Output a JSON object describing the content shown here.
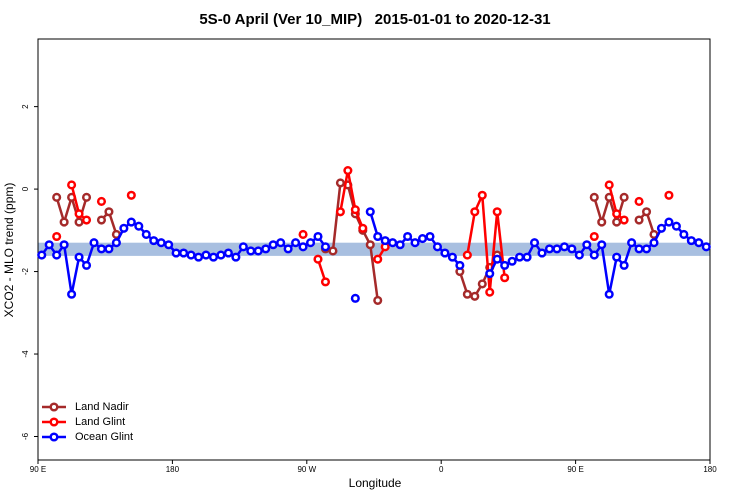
{
  "chart_data": {
    "type": "line",
    "title": "5S-0 April (Ver 10_MIP)   2015-01-01 to 2020-12-31",
    "xlabel": "Longitude",
    "ylabel": "XCO2 - MLO trend (ppm)",
    "xlim": [
      90,
      540
    ],
    "xticks": [
      {
        "value": 90,
        "label": "90 E"
      },
      180,
      {
        "value": 270,
        "label": "90 W"
      },
      {
        "value": 360,
        "label": "0"
      },
      {
        "value": 450,
        "label": "90 E"
      },
      {
        "value": 540,
        "label": "180"
      }
    ],
    "ylim": [
      -6.57,
      3.64
    ],
    "yticks": [
      -6,
      -4,
      -2,
      0,
      2
    ],
    "band": {
      "ylim": [
        -1.62,
        -1.3
      ],
      "color": "#a8bfe0"
    },
    "legend": "bottom-left",
    "x": [
      92.5,
      97.5,
      102.5,
      107.5,
      112.5,
      117.5,
      122.5,
      127.5,
      132.5,
      137.5,
      142.5,
      147.5,
      152.5,
      157.5,
      162.5,
      167.5,
      172.5,
      177.5,
      182.5,
      187.5,
      192.5,
      197.5,
      202.5,
      207.5,
      212.5,
      217.5,
      222.5,
      227.5,
      232.5,
      237.5,
      242.5,
      247.5,
      252.5,
      257.5,
      262.5,
      267.5,
      272.5,
      277.5,
      282.5,
      287.5,
      292.5,
      297.5,
      302.5,
      307.5,
      312.5,
      317.5,
      322.5,
      327.5,
      332.5,
      337.5,
      342.5,
      347.5,
      352.5,
      357.5,
      362.5,
      367.5,
      372.5,
      377.5,
      382.5,
      387.5,
      392.5,
      397.5,
      402.5,
      407.5,
      412.5,
      417.5,
      422.5,
      427.5,
      432.5,
      437.5,
      442.5,
      447.5,
      452.5,
      457.5,
      462.5,
      467.5,
      472.5,
      477.5,
      482.5,
      487.5,
      492.5,
      497.5,
      502.5,
      507.5,
      512.5,
      517.5,
      522.5,
      527.5,
      532.5,
      537.5
    ],
    "series": [
      {
        "name": "Land Nadir",
        "color": "#a52a2a",
        "values": [
          null,
          null,
          -0.2,
          -0.8,
          -0.2,
          -0.8,
          -0.2,
          null,
          -0.75,
          -0.55,
          -1.1,
          null,
          null,
          null,
          null,
          null,
          null,
          null,
          null,
          null,
          null,
          null,
          null,
          null,
          null,
          null,
          null,
          null,
          null,
          null,
          null,
          null,
          null,
          null,
          null,
          null,
          null,
          null,
          -1.45,
          -1.5,
          0.15,
          0.1,
          -0.6,
          -1.0,
          -1.35,
          -2.7,
          null,
          null,
          null,
          null,
          null,
          null,
          null,
          null,
          null,
          null,
          -2.0,
          -2.55,
          -2.6,
          -2.3,
          -1.9,
          -1.6,
          null,
          null,
          null,
          null,
          null,
          null,
          null,
          null,
          null,
          null,
          null,
          null,
          -0.2,
          -0.8,
          -0.2,
          -0.8,
          -0.2,
          null,
          -0.75,
          -0.55,
          -1.1,
          null,
          null,
          null,
          null,
          null,
          null,
          null
        ]
      },
      {
        "name": "Land Glint",
        "color": "#ff0000",
        "values": [
          null,
          null,
          -1.15,
          null,
          0.1,
          -0.6,
          -0.75,
          null,
          -0.3,
          null,
          null,
          null,
          -0.15,
          null,
          null,
          null,
          null,
          null,
          null,
          null,
          null,
          null,
          null,
          null,
          null,
          null,
          null,
          null,
          null,
          null,
          null,
          null,
          null,
          null,
          null,
          -1.1,
          null,
          -1.7,
          -2.25,
          null,
          -0.55,
          0.45,
          -0.5,
          -0.95,
          null,
          -1.7,
          -1.4,
          null,
          null,
          null,
          null,
          null,
          null,
          null,
          null,
          null,
          null,
          -1.6,
          -0.55,
          -0.15,
          -2.5,
          -0.55,
          -2.15,
          null,
          null,
          null,
          null,
          null,
          null,
          null,
          null,
          null,
          null,
          null,
          -1.15,
          null,
          0.1,
          -0.6,
          -0.75,
          null,
          -0.3,
          null,
          null,
          null,
          -0.15,
          null,
          null,
          null,
          null,
          null
        ]
      },
      {
        "name": "Ocean Glint",
        "color": "#0000ff",
        "values": [
          -1.6,
          -1.35,
          -1.6,
          -1.35,
          -2.55,
          -1.65,
          -1.85,
          -1.3,
          -1.45,
          -1.45,
          -1.3,
          -0.95,
          -0.8,
          -0.9,
          -1.1,
          -1.25,
          -1.3,
          -1.35,
          -1.55,
          -1.55,
          -1.6,
          -1.65,
          -1.6,
          -1.65,
          -1.6,
          -1.55,
          -1.65,
          -1.4,
          -1.5,
          -1.5,
          -1.45,
          -1.35,
          -1.3,
          -1.45,
          -1.3,
          -1.4,
          -1.3,
          -1.15,
          -1.4,
          null,
          null,
          null,
          -2.65,
          null,
          -0.55,
          -1.15,
          -1.25,
          -1.3,
          -1.35,
          -1.15,
          -1.3,
          -1.2,
          -1.15,
          -1.4,
          -1.55,
          -1.65,
          -1.85,
          null,
          null,
          null,
          -2.05,
          -1.7,
          -1.85,
          -1.75,
          -1.65,
          -1.65,
          -1.3,
          -1.55,
          -1.45,
          -1.45,
          -1.4,
          -1.45,
          -1.6,
          -1.35,
          -1.6,
          -1.35,
          -2.55,
          -1.65,
          -1.85,
          -1.3,
          -1.45,
          -1.45,
          -1.3,
          -0.95,
          -0.8,
          -0.9,
          -1.1,
          -1.25,
          -1.3,
          -1.4
        ]
      }
    ]
  }
}
